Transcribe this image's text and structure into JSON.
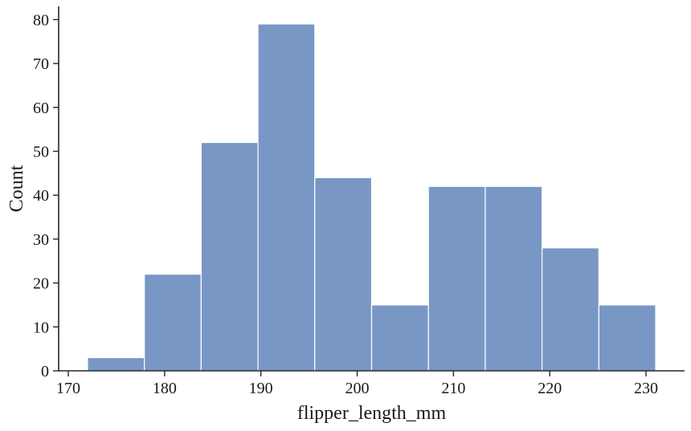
{
  "chart_data": {
    "type": "bar",
    "subtype": "histogram",
    "xlabel": "flipper_length_mm",
    "ylabel": "Count",
    "xlim": [
      169,
      234
    ],
    "ylim": [
      0,
      83
    ],
    "xticks": [
      170,
      180,
      190,
      200,
      210,
      220,
      230
    ],
    "yticks": [
      0,
      10,
      20,
      30,
      40,
      50,
      60,
      70,
      80
    ],
    "bins": [
      {
        "start": 172.0,
        "end": 177.9,
        "count": 3
      },
      {
        "start": 177.9,
        "end": 183.8,
        "count": 22
      },
      {
        "start": 183.8,
        "end": 189.7,
        "count": 52
      },
      {
        "start": 189.7,
        "end": 195.6,
        "count": 79
      },
      {
        "start": 195.6,
        "end": 201.5,
        "count": 44
      },
      {
        "start": 201.5,
        "end": 207.4,
        "count": 15
      },
      {
        "start": 207.4,
        "end": 213.3,
        "count": 42
      },
      {
        "start": 213.3,
        "end": 219.2,
        "count": 42
      },
      {
        "start": 219.2,
        "end": 225.1,
        "count": 28
      },
      {
        "start": 225.1,
        "end": 231.0,
        "count": 15
      }
    ],
    "bar_color": "#7897c4",
    "grid": false,
    "legend": "none"
  }
}
